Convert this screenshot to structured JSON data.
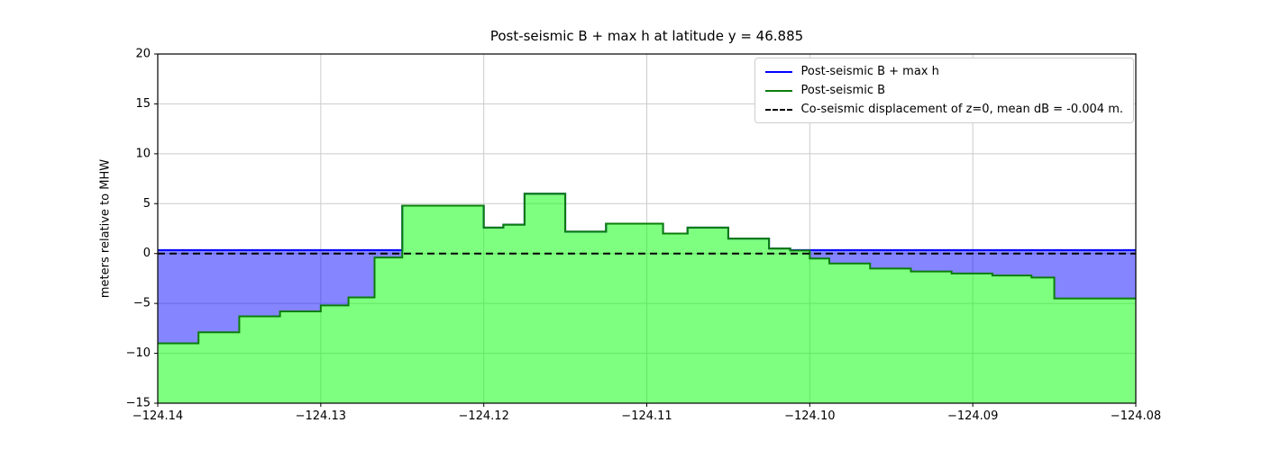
{
  "chart_data": {
    "type": "area",
    "title": "Post-seismic B + max h at latitude y = 46.885",
    "xlabel": "",
    "ylabel": "meters relative to MHW",
    "xlim": [
      -124.14,
      -124.08
    ],
    "ylim": [
      -15,
      20
    ],
    "x_ticks": [
      -124.14,
      -124.13,
      -124.12,
      -124.11,
      -124.1,
      -124.09,
      -124.08
    ],
    "x_tick_labels": [
      "−124.14",
      "−124.13",
      "−124.12",
      "−124.11",
      "−124.10",
      "−124.09",
      "−124.08"
    ],
    "y_ticks": [
      -15,
      -10,
      -5,
      0,
      5,
      10,
      15,
      20
    ],
    "y_tick_labels": [
      "−15",
      "−10",
      "−5",
      "0",
      "5",
      "10",
      "15",
      "20"
    ],
    "grid": true,
    "grid_color": "#cccccc",
    "legend_position": "upper right",
    "legend": [
      {
        "label": "Post-seismic B + max h",
        "color": "#0000ff",
        "dash": false
      },
      {
        "label": "Post-seismic B",
        "color": "#0b7d0b",
        "dash": false
      },
      {
        "label": "Co-seismic displacement of z=0, mean dB = -0.004 m.",
        "color": "#000000",
        "dash": true
      }
    ],
    "series": {
      "post_seismic_B": {
        "name": "Post-seismic B",
        "line_color": "#0b7d0b",
        "fill_color": "rgba(0,255,0,0.5)",
        "x_edges": [
          -124.14,
          -124.1375,
          -124.135,
          -124.1325,
          -124.13,
          -124.1283,
          -124.1267,
          -124.125,
          -124.12,
          -124.1188,
          -124.1175,
          -124.115,
          -124.1125,
          -124.109,
          -124.1075,
          -124.105,
          -124.1025,
          -124.1012,
          -124.1,
          -124.0988,
          -124.0963,
          -124.0938,
          -124.0913,
          -124.0888,
          -124.0864,
          -124.085,
          -124.08
        ],
        "values": [
          -9.0,
          -7.9,
          -6.3,
          -5.8,
          -5.2,
          -4.4,
          -0.4,
          4.8,
          2.6,
          2.9,
          6.0,
          2.2,
          3.0,
          2.0,
          2.6,
          1.5,
          0.5,
          0.3,
          -0.5,
          -1.0,
          -1.5,
          -1.8,
          -2.0,
          -2.2,
          -2.4,
          -4.5
        ]
      },
      "post_seismic_B_plus_max_h": {
        "name": "Post-seismic B + max h",
        "level": 0.35,
        "line_color": "#0000ff",
        "fill_color": "rgba(0,0,255,0.48)"
      },
      "co_seismic_displacement": {
        "name": "Co-seismic displacement of z=0",
        "level": -0.004,
        "line_color": "#000000",
        "dash": true
      }
    }
  }
}
